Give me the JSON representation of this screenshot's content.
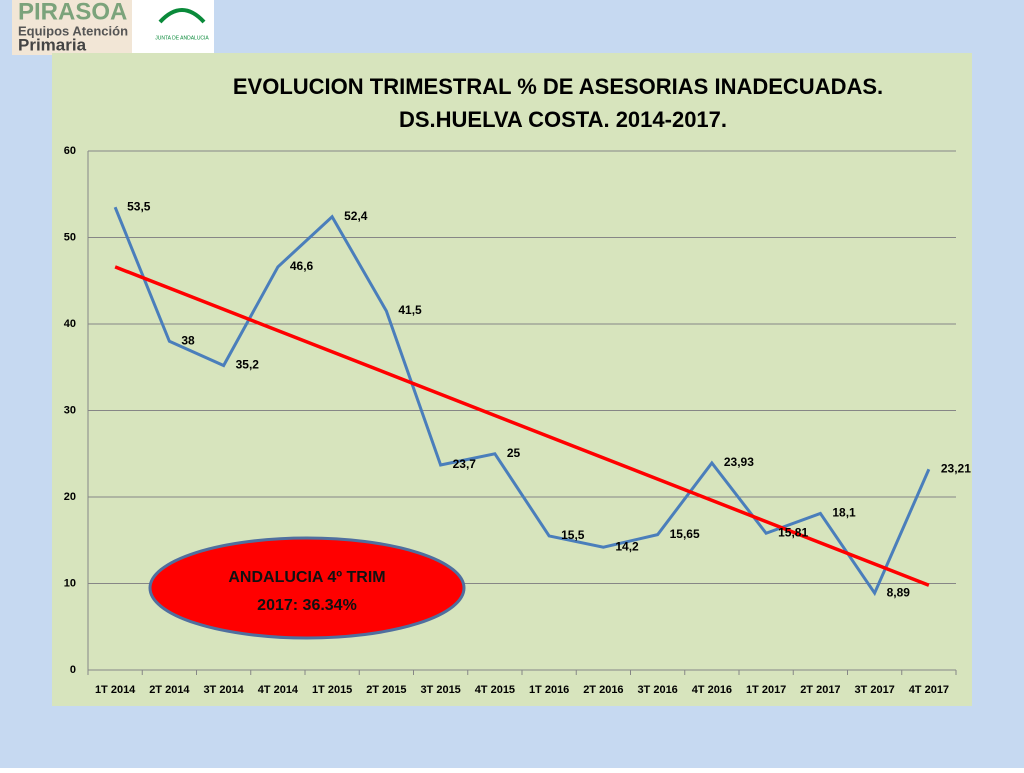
{
  "logo": {
    "brand": "PIRASOA",
    "line1": "Equipos Atención",
    "line2": "Primaria",
    "institution": "JUNTA DE ANDALUCIA"
  },
  "chart_data": {
    "type": "line",
    "title": [
      "EVOLUCION TRIMESTRAL % DE ASESORIAS INADECUADAS.",
      "DS.HUELVA COSTA. 2014-2017."
    ],
    "categories": [
      "1T 2014",
      "2T 2014",
      "3T 2014",
      "4T 2014",
      "1T 2015",
      "2T 2015",
      "3T 2015",
      "4T 2015",
      "1T 2016",
      "2T 2016",
      "3T 2016",
      "4T 2016",
      "1T 2017",
      "2T 2017",
      "3T 2017",
      "4T 2017"
    ],
    "values": [
      53.5,
      38,
      35.2,
      46.6,
      52.4,
      41.5,
      23.7,
      25,
      15.5,
      14.2,
      15.65,
      23.93,
      15.81,
      18.1,
      8.89,
      23.21
    ],
    "value_labels": [
      "53,5",
      "38",
      "35,2",
      "46,6",
      "52,4",
      "41,5",
      "23,7",
      "25",
      "15,5",
      "14,2",
      "15,65",
      "23,93",
      "15,81",
      "18,1",
      "8,89",
      "23,21"
    ],
    "color": "#4a7ebb",
    "trendline": {
      "color": "#ff0000",
      "values": [
        46.6,
        9.8
      ]
    },
    "ylim": [
      0,
      60
    ],
    "yticks": [
      0,
      10,
      20,
      30,
      40,
      50,
      60
    ],
    "grid": true,
    "annotation": [
      "ANDALUCIA 4º TRIM",
      "2017: 36.34%"
    ]
  }
}
